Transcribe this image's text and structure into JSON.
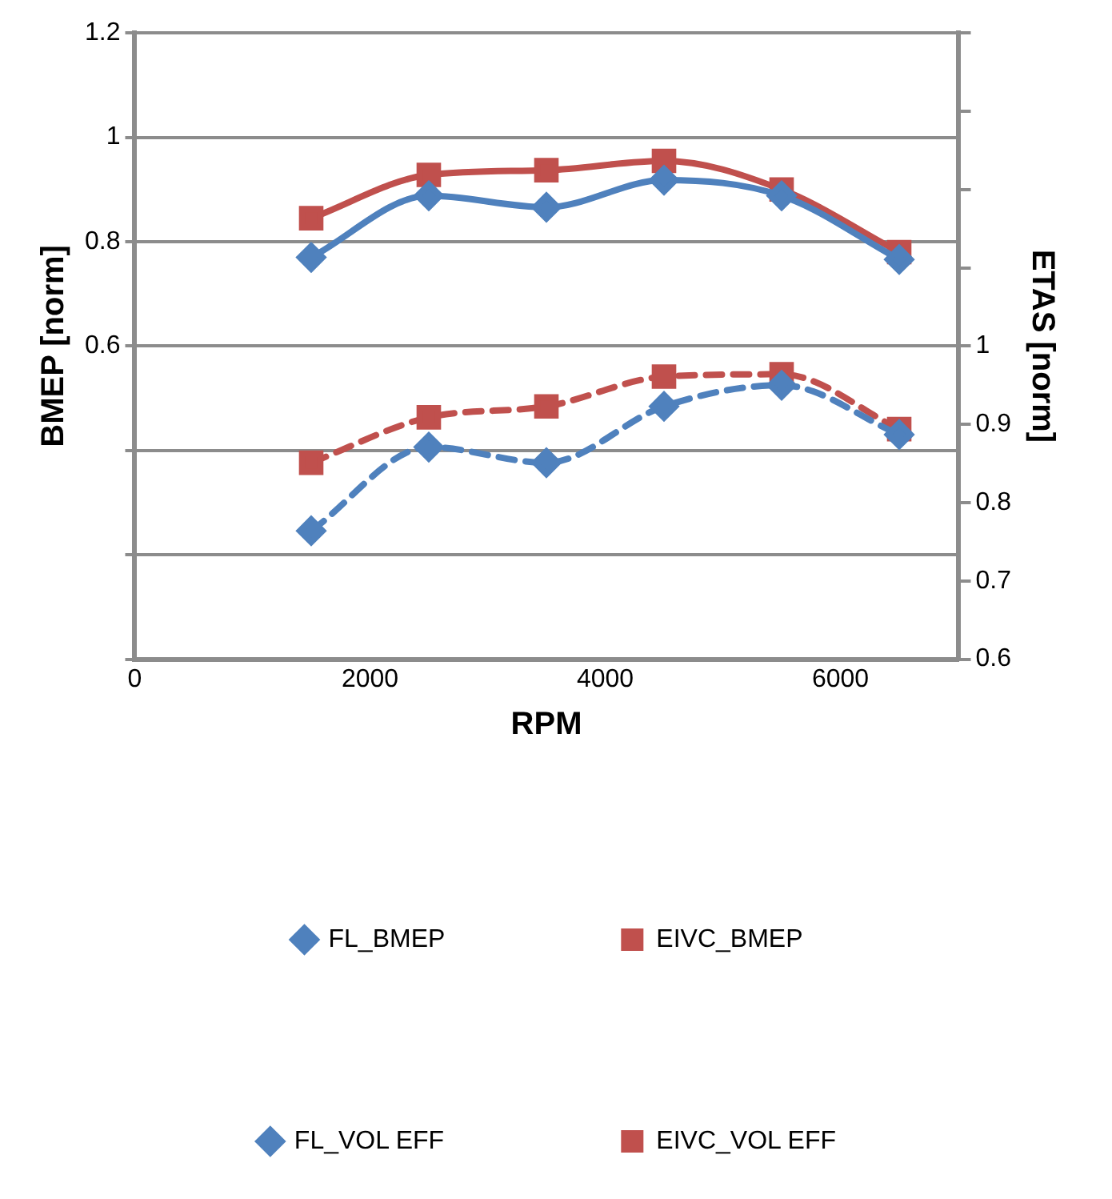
{
  "chart_data": {
    "type": "line",
    "xlabel": "RPM",
    "ylabel": "BMEP [norm]",
    "y2label": "ETAS [norm]",
    "xlim": [
      0,
      7000
    ],
    "xticks": [
      0,
      2000,
      4000,
      6000
    ],
    "ylim": [
      0,
      1.2
    ],
    "yticks": [
      {
        "value": 0,
        "label": null
      },
      {
        "value": 0.2,
        "label": null
      },
      {
        "value": 0.4,
        "label": null
      },
      0.6,
      0.8,
      1,
      1.2
    ],
    "y2lim": [
      0.6,
      1.4
    ],
    "y2ticks": [
      0.6,
      0.7,
      0.8,
      0.9,
      1,
      {
        "value": 1.1,
        "label": null
      },
      {
        "value": 1.2,
        "label": null
      },
      {
        "value": 1.3,
        "label": null
      },
      {
        "value": 1.4,
        "label": null
      }
    ],
    "grid": "y",
    "legend": "bottom",
    "x": [
      1500,
      2500,
      3500,
      4500,
      5500,
      6500
    ],
    "series": [
      {
        "name": "FL_BMEP",
        "color": "#4f81bd",
        "marker": "diamond",
        "line_style": "solid",
        "values": [
          0.77,
          0.888,
          0.866,
          0.918,
          0.888,
          0.766
        ]
      },
      {
        "name": "EIVC_BMEP",
        "color": "#c0504d",
        "marker": "square",
        "line_style": "solid",
        "values": [
          0.845,
          0.928,
          0.937,
          0.955,
          0.9,
          0.78
        ]
      },
      {
        "name": "FL_VOL EFF",
        "color": "#4f81bd",
        "marker": "diamond",
        "line_style": "dashed",
        "axis": "y2",
        "values": [
          0.764,
          0.871,
          0.851,
          0.923,
          0.95,
          0.887
        ]
      },
      {
        "name": "EIVC_VOL EFF",
        "color": "#c0504d",
        "marker": "square",
        "line_style": "dashed",
        "axis": "y2",
        "values": [
          0.851,
          0.909,
          0.923,
          0.961,
          0.964,
          0.894
        ]
      }
    ]
  }
}
